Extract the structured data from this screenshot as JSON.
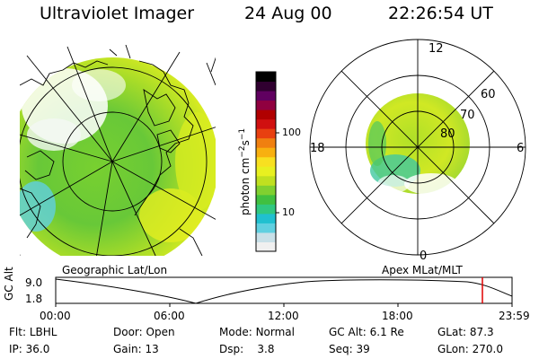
{
  "header": {
    "title": "Ultraviolet Imager",
    "date": "24 Aug 00",
    "time": "22:26:54 UT"
  },
  "left_panel": {
    "label": "Geographic Lat/Lon"
  },
  "right_panel": {
    "label": "Apex MLat/MLT",
    "mlt_labels": {
      "top": "12",
      "left": "18",
      "right": "6",
      "bottom": "0"
    },
    "lat_labels": [
      "60",
      "70",
      "80"
    ]
  },
  "colorbar": {
    "unit_label": "photon cm",
    "unit_exp1": "−2",
    "unit_mid": "s",
    "unit_exp2": "−1",
    "tick_labels": [
      "100",
      "10"
    ],
    "colors": [
      "#f0f0f0",
      "#c8e0e8",
      "#60d0e0",
      "#20c0d0",
      "#30c880",
      "#40c040",
      "#80d030",
      "#c0e020",
      "#e8f020",
      "#f8e020",
      "#f8b010",
      "#f08010",
      "#e84010",
      "#d01010",
      "#b00000",
      "#900040",
      "#600060",
      "#300030",
      "#000000"
    ]
  },
  "timeline": {
    "ylabel": "GC Alt",
    "y_max_label": "9.0",
    "y_min_label": "1.8",
    "x_ticks": [
      "00:00",
      "06:00",
      "12:00",
      "18:00",
      "23:59"
    ],
    "marker_color": "#e00000"
  },
  "info": {
    "flt_label": "Flt:",
    "flt_value": "LBHL",
    "ip_label": "IP:",
    "ip_value": "36.0",
    "door_label": "Door:",
    "door_value": "Open",
    "gain_label": "Gain:",
    "gain_value": "13",
    "mode_label": "Mode:",
    "mode_value": "Normal",
    "dsp_label": "Dsp:",
    "dsp_value": "3.8",
    "gcalt_label": "GC Alt:",
    "gcalt_value": "6.1 Re",
    "seq_label": "Seq:",
    "seq_value": "39",
    "glat_label": "GLat:",
    "glat_value": "87.3",
    "glon_label": "GLon:",
    "glon_value": "270.0"
  }
}
